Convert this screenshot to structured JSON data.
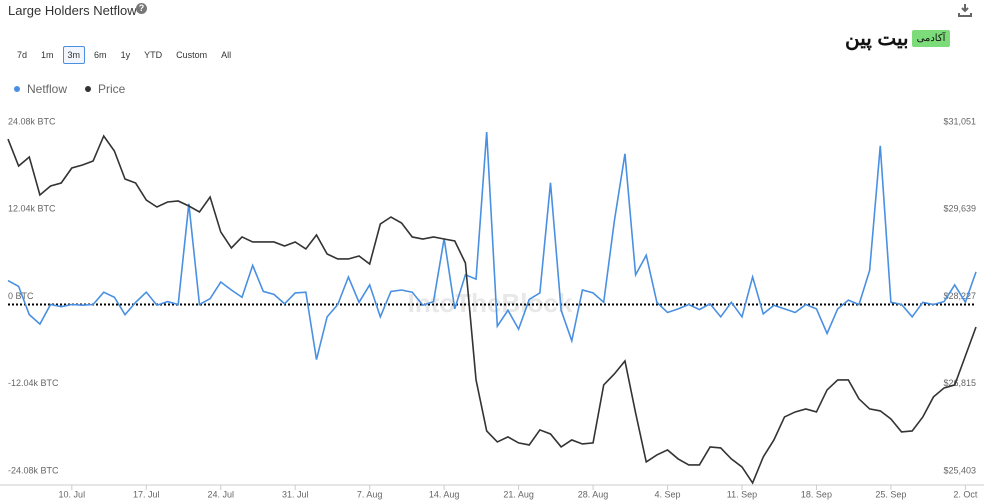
{
  "chart_data": {
    "type": "line",
    "title": "Large Holders Netflow",
    "help_icon": "?",
    "range_buttons": [
      "7d",
      "1m",
      "3m",
      "6m",
      "1y",
      "YTD",
      "Custom",
      "All"
    ],
    "selected_range": "3m",
    "logo": {
      "main": "بیت پین",
      "badge": "آکادمی"
    },
    "watermark": "IntoTheBlock",
    "categories": [
      null,
      null,
      null,
      null,
      null,
      null,
      "10. Jul",
      null,
      null,
      null,
      null,
      null,
      null,
      "17. Jul",
      null,
      null,
      null,
      null,
      null,
      null,
      "24. Jul",
      null,
      null,
      null,
      null,
      null,
      null,
      "31. Jul",
      null,
      null,
      null,
      null,
      null,
      null,
      "7. Aug",
      null,
      null,
      null,
      null,
      null,
      null,
      "14. Aug",
      null,
      null,
      null,
      null,
      null,
      null,
      "21. Aug",
      null,
      null,
      null,
      null,
      null,
      null,
      "28. Aug",
      null,
      null,
      null,
      null,
      null,
      null,
      "4. Sep",
      null,
      null,
      null,
      null,
      null,
      null,
      "11. Sep",
      null,
      null,
      null,
      null,
      null,
      null,
      "18. Sep",
      null,
      null,
      null,
      null,
      null,
      null,
      "25. Sep",
      null,
      null,
      null,
      null,
      null,
      null,
      "2. Oct",
      null
    ],
    "series": [
      {
        "name": "Netflow",
        "color": "#4a90e2",
        "axis": "y",
        "values": [
          3300,
          2500,
          -1400,
          -2700,
          0,
          -300,
          0,
          -100,
          0,
          1700,
          1000,
          -1400,
          300,
          1700,
          -100,
          400,
          0,
          13900,
          0,
          800,
          3100,
          2000,
          1000,
          5400,
          1800,
          1400,
          100,
          1600,
          1700,
          -7600,
          -1700,
          0,
          3800,
          300,
          2700,
          -1700,
          1800,
          2000,
          1700,
          -100,
          400,
          9100,
          -600,
          4100,
          3500,
          23800,
          -3000,
          -800,
          -3400,
          700,
          1600,
          16800,
          -800,
          -5000,
          2000,
          1600,
          300,
          11500,
          20800,
          4100,
          6800,
          300,
          -1100,
          -600,
          0,
          -700,
          100,
          -1700,
          300,
          -1700,
          3800,
          -1300,
          -100,
          -600,
          -1100,
          0,
          -600,
          -4000,
          -600,
          600,
          0,
          4700,
          21900,
          300,
          0,
          -1700,
          300,
          0,
          400,
          2700,
          300,
          4500
        ]
      },
      {
        "name": "Price",
        "color": "#333333",
        "axis": "y2",
        "values": [
          30905,
          30468,
          30614,
          30000,
          30145,
          30193,
          30436,
          30485,
          30549,
          30954,
          30711,
          30258,
          30193,
          29918,
          29805,
          29886,
          29902,
          29821,
          29724,
          29967,
          29401,
          29142,
          29320,
          29239,
          29239,
          29239,
          29174,
          29239,
          29126,
          29352,
          29045,
          28964,
          28964,
          29012,
          28883,
          29530,
          29643,
          29546,
          29320,
          29287,
          29320,
          29287,
          29255,
          28899,
          27006,
          26181,
          26003,
          26084,
          25987,
          25954,
          26197,
          26132,
          25922,
          26035,
          25970,
          25987,
          26925,
          27103,
          27313,
          26472,
          25679,
          25792,
          25873,
          25728,
          25631,
          25631,
          25922,
          25906,
          25728,
          25598,
          25340,
          25760,
          26035,
          26407,
          26488,
          26537,
          26488,
          26844,
          27006,
          27006,
          26699,
          26537,
          26505,
          26375,
          26165,
          26181,
          26407,
          26731,
          26877,
          26925,
          27394,
          27863
        ]
      }
    ],
    "ylim": [
      -24080,
      24080
    ],
    "yticks": [
      {
        "value": -24080,
        "label": "-24.08k BTC"
      },
      {
        "value": -12040,
        "label": "-12.04k BTC"
      },
      {
        "value": 0,
        "label": "0 BTC"
      },
      {
        "value": 12040,
        "label": "12.04k BTC"
      },
      {
        "value": 24080,
        "label": "24.08k BTC"
      }
    ],
    "y2lim": [
      25403,
      31051
    ],
    "y2ticks": [
      {
        "value": 25403,
        "label": "$25,403"
      },
      {
        "value": 26815,
        "label": "$26,815"
      },
      {
        "value": 28227,
        "label": "$28,227"
      },
      {
        "value": 29639,
        "label": "$29,639"
      },
      {
        "value": 31051,
        "label": "$31,051"
      }
    ],
    "zero_line": true,
    "legend": "top-left"
  }
}
